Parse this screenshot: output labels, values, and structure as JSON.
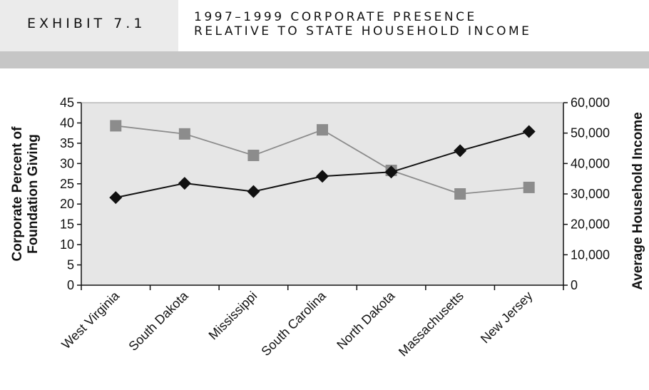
{
  "header": {
    "exhibit_label": "EXHIBIT 7.1",
    "title_line1": "1997–1999 CORPORATE PRESENCE",
    "title_line2": "RELATIVE TO STATE HOUSEHOLD INCOME"
  },
  "chart_data": {
    "type": "line",
    "categories": [
      "West Virginia",
      "South Dakota",
      "Mississippi",
      "South Carolina",
      "North Dakota",
      "Massachusetts",
      "New Jersey"
    ],
    "series": [
      {
        "axis": "left",
        "marker": "square",
        "color": "#8c8c8c",
        "values": [
          39.3,
          37.3,
          32.0,
          38.3,
          28.3,
          22.5,
          24.1
        ]
      },
      {
        "axis": "right",
        "marker": "diamond",
        "color": "#111111",
        "values": [
          28800,
          33500,
          30800,
          35800,
          37200,
          44200,
          50500
        ]
      }
    ],
    "ylabel_left": [
      "Corporate Percent of",
      "Foundation Giving"
    ],
    "ylabel_right": "Average Household Income",
    "ylim_left": [
      0,
      45
    ],
    "ylim_right": [
      0,
      60000
    ],
    "yticks_left": [
      "0",
      "5",
      "10",
      "15",
      "20",
      "25",
      "30",
      "35",
      "40",
      "45"
    ],
    "yticks_right": [
      "0",
      "10,000",
      "20,000",
      "30,000",
      "40,000",
      "50,000",
      "60,000"
    ],
    "plot_background": "#e6e6e6",
    "grid": false,
    "legend": "none"
  }
}
